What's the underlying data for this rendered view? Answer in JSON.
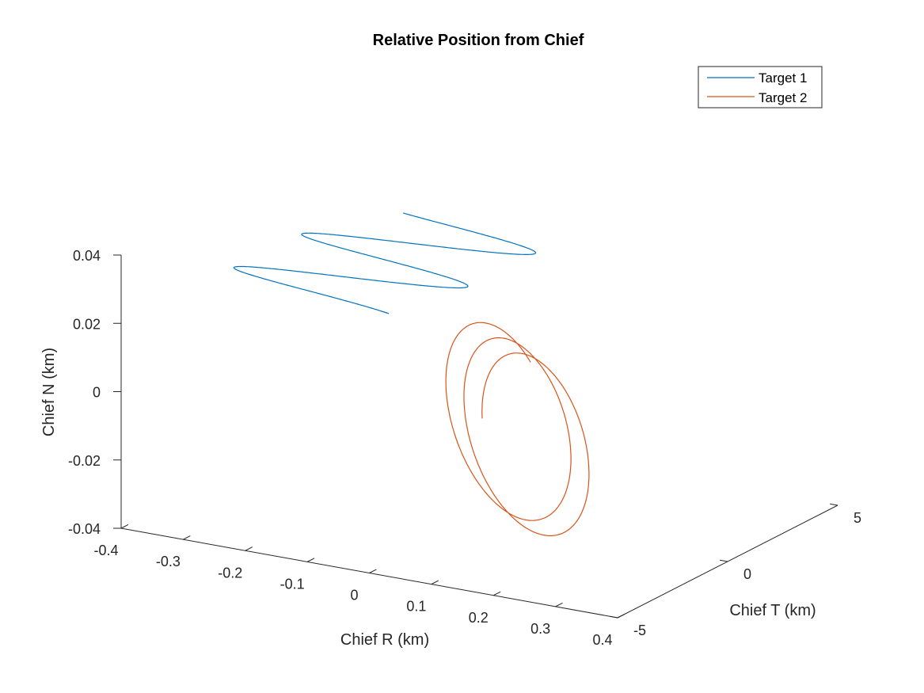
{
  "chart_data": {
    "type": "line",
    "projection": "3d",
    "title": "Relative Position from Chief",
    "xlabel": "Chief R (km)",
    "ylabel": "Chief T (km)",
    "zlabel": "Chief N (km)",
    "xlim": [
      -0.4,
      0.4
    ],
    "ylim": [
      -5,
      5
    ],
    "zlim": [
      -0.04,
      0.04
    ],
    "xticks": [
      -0.4,
      -0.3,
      -0.2,
      -0.1,
      0,
      0.1,
      0.2,
      0.3,
      0.4
    ],
    "xtick_labels": [
      "-0.4",
      "-0.3",
      "-0.2",
      "-0.1",
      "0",
      "0.1",
      "0.2",
      "0.3",
      "0.4"
    ],
    "yticks": [
      -5,
      0,
      5
    ],
    "ytick_labels": [
      "-5",
      "0",
      "5"
    ],
    "zticks": [
      -0.04,
      -0.02,
      0,
      0.02,
      0.04
    ],
    "ztick_labels": [
      "-0.04",
      "-0.02",
      "0",
      "0.02",
      "0.04"
    ],
    "grid": false,
    "legend_position": "top-right",
    "series": [
      {
        "name": "Target 1",
        "color": "#0072BD",
        "shape": "helix",
        "turns": 2.25,
        "center_start": [
          -0.3,
          0.6,
          0.012
        ],
        "center_end": [
          -0.15,
          3.3,
          0.03
        ],
        "amplitude": [
          0.14,
          2.2,
          0.01
        ],
        "phase_start_deg": 5
      },
      {
        "name": "Target 2",
        "color": "#D95319",
        "shape": "helix",
        "turns": 2.35,
        "center_start": [
          0.04,
          -0.3,
          -0.008
        ],
        "center_end": [
          0.19,
          -2.6,
          -0.006
        ],
        "amplitude": [
          0.09,
          0.7,
          0.03
        ],
        "phase_start_deg": 40
      }
    ]
  }
}
